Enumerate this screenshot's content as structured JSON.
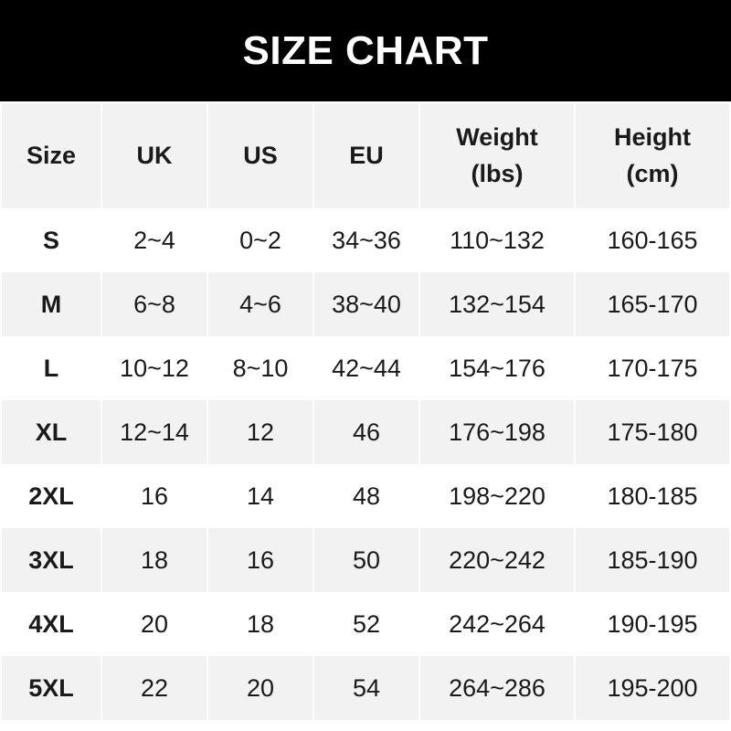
{
  "title": "SIZE CHART",
  "headers": [
    "Size",
    "UK",
    "US",
    "EU",
    "Weight\n(lbs)",
    "Height\n(cm)"
  ],
  "rows": [
    [
      "S",
      "2~4",
      "0~2",
      "34~36",
      "110~132",
      "160-165"
    ],
    [
      "M",
      "6~8",
      "4~6",
      "38~40",
      "132~154",
      "165-170"
    ],
    [
      "L",
      "10~12",
      "8~10",
      "42~44",
      "154~176",
      "170-175"
    ],
    [
      "XL",
      "12~14",
      "12",
      "46",
      "176~198",
      "175-180"
    ],
    [
      "2XL",
      "16",
      "14",
      "48",
      "198~220",
      "180-185"
    ],
    [
      "3XL",
      "18",
      "16",
      "50",
      "220~242",
      "185-190"
    ],
    [
      "4XL",
      "20",
      "18",
      "52",
      "242~264",
      "190-195"
    ],
    [
      "5XL",
      "22",
      "20",
      "54",
      "264~286",
      "195-200"
    ]
  ],
  "colors": {
    "banner": "#000000",
    "header_bg": "#f2f2f2",
    "alt_row_bg": "#f2f2f2",
    "text": "#1a1a1a"
  }
}
